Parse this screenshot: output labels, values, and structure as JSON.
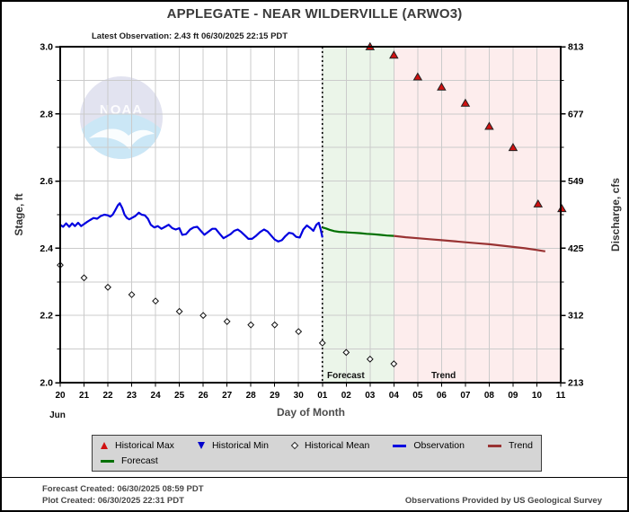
{
  "page": {
    "title": "APPLEGATE - NEAR WILDERVILLE  (ARWO3)",
    "latest_observation": "Latest Observation: 2.43 ft 06/30/2025 22:15 PDT"
  },
  "watermark": {
    "text": "NOAA",
    "circle_color": "#e2e3f0",
    "wave_color": "#cbe7f6",
    "bird_color": "#ffffff",
    "text_color": "#fcfcfe"
  },
  "chart_data": {
    "type": "line",
    "x_axis": {
      "label": "Day of Month",
      "month_label": "Jun",
      "day_labels": [
        "20",
        "21",
        "22",
        "23",
        "24",
        "25",
        "26",
        "27",
        "28",
        "29",
        "30",
        "01",
        "02",
        "03",
        "04",
        "05",
        "06",
        "07",
        "08",
        "09",
        "10",
        "11"
      ]
    },
    "y_left": {
      "label": "Stage, ft",
      "min": 2.0,
      "max": 3.0,
      "major_ticks": [
        3.0,
        2.8,
        2.6,
        2.4,
        2.2,
        2.0
      ],
      "major_tick_labels": [
        "3.0",
        "2.8",
        "2.6",
        "2.4",
        "2.2",
        "2.0"
      ],
      "minor_step": 0.1
    },
    "y_right": {
      "label": "Discharge, cfs",
      "tick_labels": [
        "813",
        "677",
        "549",
        "425",
        "312",
        "213"
      ]
    },
    "grid_color": "#cbcbcb",
    "border_color": "#000000",
    "now_line_day": 11,
    "regions": [
      {
        "name": "forecast",
        "label": "Forecast",
        "start_day": 11,
        "end_day": 14,
        "color": "#ebf5e9"
      },
      {
        "name": "trend",
        "label": "Trend",
        "start_day": 14,
        "end_day": 21,
        "color": "#fdeded"
      }
    ],
    "series": [
      {
        "name": "Observation",
        "color": "#0000e0",
        "points": [
          [
            0,
            2.47
          ],
          [
            0.12,
            2.464
          ],
          [
            0.25,
            2.474
          ],
          [
            0.38,
            2.464
          ],
          [
            0.5,
            2.474
          ],
          [
            0.62,
            2.466
          ],
          [
            0.75,
            2.476
          ],
          [
            0.88,
            2.466
          ],
          [
            1,
            2.472
          ],
          [
            1.12,
            2.478
          ],
          [
            1.25,
            2.484
          ],
          [
            1.4,
            2.49
          ],
          [
            1.55,
            2.488
          ],
          [
            1.7,
            2.496
          ],
          [
            1.85,
            2.5
          ],
          [
            2,
            2.498
          ],
          [
            2.1,
            2.494
          ],
          [
            2.2,
            2.5
          ],
          [
            2.3,
            2.512
          ],
          [
            2.42,
            2.528
          ],
          [
            2.5,
            2.534
          ],
          [
            2.6,
            2.52
          ],
          [
            2.7,
            2.5
          ],
          [
            2.8,
            2.49
          ],
          [
            2.9,
            2.486
          ],
          [
            3,
            2.49
          ],
          [
            3.15,
            2.496
          ],
          [
            3.3,
            2.506
          ],
          [
            3.42,
            2.5
          ],
          [
            3.55,
            2.498
          ],
          [
            3.68,
            2.488
          ],
          [
            3.8,
            2.47
          ],
          [
            3.95,
            2.462
          ],
          [
            4.1,
            2.466
          ],
          [
            4.25,
            2.458
          ],
          [
            4.4,
            2.464
          ],
          [
            4.55,
            2.47
          ],
          [
            4.7,
            2.46
          ],
          [
            4.85,
            2.456
          ],
          [
            5,
            2.46
          ],
          [
            5.12,
            2.44
          ],
          [
            5.28,
            2.442
          ],
          [
            5.45,
            2.456
          ],
          [
            5.6,
            2.462
          ],
          [
            5.75,
            2.464
          ],
          [
            5.9,
            2.452
          ],
          [
            6.05,
            2.44
          ],
          [
            6.2,
            2.448
          ],
          [
            6.38,
            2.458
          ],
          [
            6.52,
            2.458
          ],
          [
            6.68,
            2.444
          ],
          [
            6.85,
            2.43
          ],
          [
            7,
            2.436
          ],
          [
            7.15,
            2.442
          ],
          [
            7.3,
            2.452
          ],
          [
            7.45,
            2.456
          ],
          [
            7.6,
            2.448
          ],
          [
            7.75,
            2.438
          ],
          [
            7.9,
            2.428
          ],
          [
            8.05,
            2.428
          ],
          [
            8.2,
            2.436
          ],
          [
            8.38,
            2.448
          ],
          [
            8.55,
            2.456
          ],
          [
            8.7,
            2.45
          ],
          [
            8.85,
            2.438
          ],
          [
            9,
            2.426
          ],
          [
            9.15,
            2.42
          ],
          [
            9.3,
            2.424
          ],
          [
            9.45,
            2.436
          ],
          [
            9.6,
            2.446
          ],
          [
            9.75,
            2.444
          ],
          [
            9.9,
            2.434
          ],
          [
            10.05,
            2.432
          ],
          [
            10.2,
            2.456
          ],
          [
            10.35,
            2.468
          ],
          [
            10.5,
            2.46
          ],
          [
            10.62,
            2.452
          ],
          [
            10.75,
            2.47
          ],
          [
            10.85,
            2.476
          ],
          [
            10.93,
            2.456
          ],
          [
            11,
            2.432
          ]
        ]
      },
      {
        "name": "Forecast",
        "color": "#007000",
        "points": [
          [
            11,
            2.462
          ],
          [
            11.15,
            2.459
          ],
          [
            11.3,
            2.455
          ],
          [
            11.5,
            2.451
          ],
          [
            11.7,
            2.449
          ],
          [
            11.9,
            2.448
          ],
          [
            12.1,
            2.447
          ],
          [
            12.35,
            2.446
          ],
          [
            12.6,
            2.445
          ],
          [
            12.85,
            2.443
          ],
          [
            13.1,
            2.442
          ],
          [
            13.4,
            2.44
          ],
          [
            13.7,
            2.438
          ],
          [
            14,
            2.437
          ]
        ]
      },
      {
        "name": "Trend",
        "color": "#993333",
        "points": [
          [
            14,
            2.437
          ],
          [
            14.5,
            2.433
          ],
          [
            15,
            2.43
          ],
          [
            15.5,
            2.427
          ],
          [
            16,
            2.424
          ],
          [
            16.5,
            2.421
          ],
          [
            17,
            2.418
          ],
          [
            17.5,
            2.415
          ],
          [
            18,
            2.412
          ],
          [
            18.5,
            2.408
          ],
          [
            19,
            2.404
          ],
          [
            19.5,
            2.4
          ],
          [
            20,
            2.395
          ],
          [
            20.35,
            2.391
          ]
        ]
      }
    ],
    "markers": [
      {
        "name": "Historical Max",
        "shape": "triangle-up",
        "fill": "#d01010",
        "stroke": "#222222",
        "points": [
          [
            13,
            3.0
          ],
          [
            14,
            2.975
          ],
          [
            15,
            2.91
          ],
          [
            16,
            2.88
          ],
          [
            17,
            2.832
          ],
          [
            18,
            2.763
          ],
          [
            19,
            2.7
          ],
          [
            20.05,
            2.532
          ],
          [
            21.05,
            2.518
          ]
        ]
      },
      {
        "name": "Historical Mean",
        "shape": "diamond",
        "fill": "#ffffff",
        "stroke": "#111111",
        "points": [
          [
            0,
            2.35
          ],
          [
            1,
            2.312
          ],
          [
            2,
            2.284
          ],
          [
            3,
            2.262
          ],
          [
            4,
            2.243
          ],
          [
            5,
            2.212
          ],
          [
            6,
            2.2
          ],
          [
            7,
            2.182
          ],
          [
            8,
            2.172
          ],
          [
            9,
            2.172
          ],
          [
            10,
            2.152
          ],
          [
            11,
            2.118
          ],
          [
            12,
            2.09
          ],
          [
            13,
            2.07
          ],
          [
            14,
            2.056
          ]
        ]
      }
    ]
  },
  "legend": {
    "items": [
      {
        "label": "Historical Max",
        "marker": "tri-up",
        "color": "#d01010"
      },
      {
        "label": "Historical Min",
        "marker": "tri-down",
        "color": "#0000cc"
      },
      {
        "label": "Historical Mean",
        "marker": "diamond",
        "color": "#ffffff"
      },
      {
        "label": "Observation",
        "marker": "line",
        "color": "#0000e0"
      },
      {
        "label": "Trend",
        "marker": "line",
        "color": "#993333"
      },
      {
        "label": "Forecast",
        "marker": "line",
        "color": "#007000"
      }
    ]
  },
  "footer": {
    "forecast_created": "Forecast Created: 06/30/2025 08:59 PDT",
    "plot_created": "Plot Created: 06/30/2025 22:31 PDT",
    "credit": "Observations Provided by US Geological Survey"
  }
}
